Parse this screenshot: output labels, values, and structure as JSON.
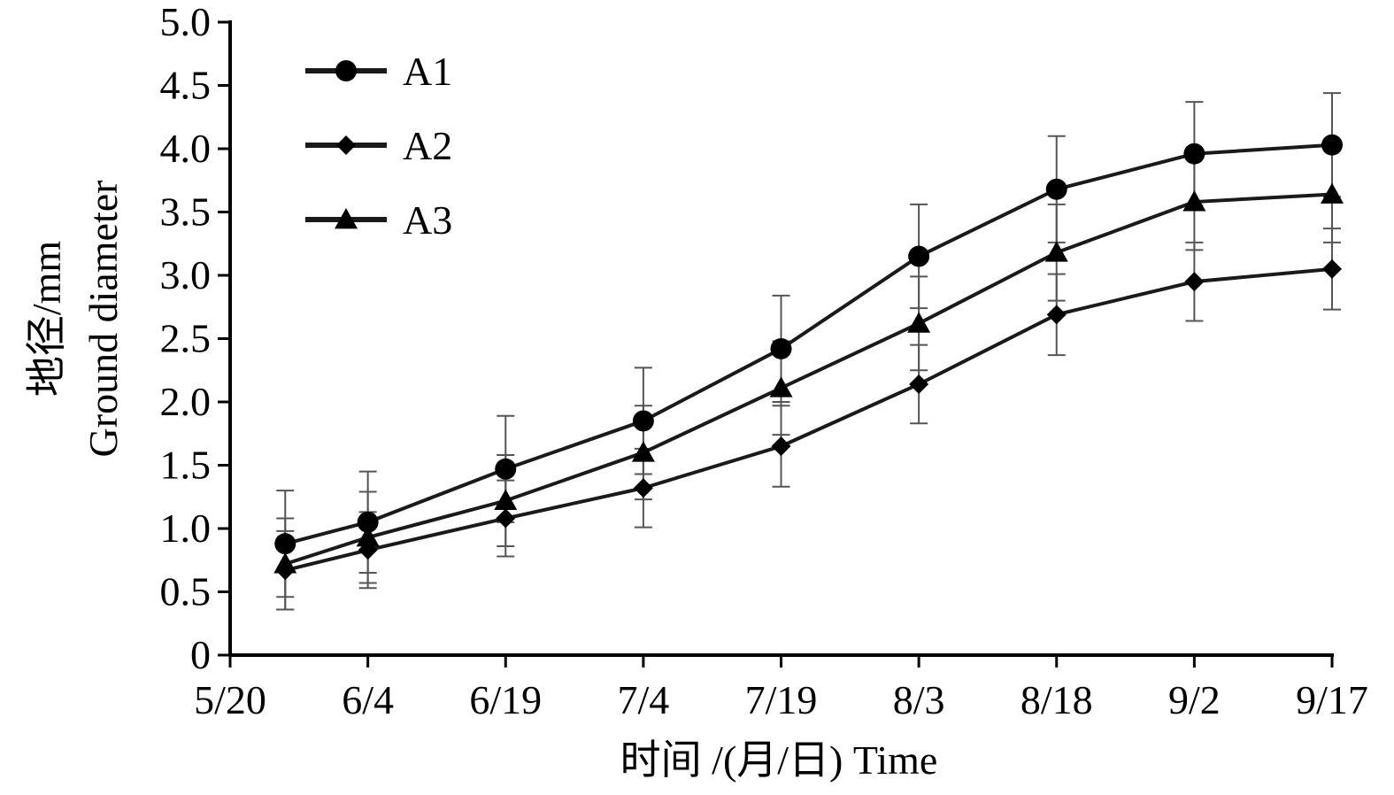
{
  "chart_data": {
    "type": "line",
    "title": "",
    "xlabel": "时间 /(月/日) Time",
    "ylabel_line1": "地径/mm",
    "ylabel_line2": "Ground diameter",
    "x_ticks": [
      "5/20",
      "6/4",
      "6/19",
      "7/4",
      "7/19",
      "8/3",
      "8/18",
      "9/2",
      "9/17"
    ],
    "x_range": [
      "5/20",
      "9/17"
    ],
    "y_ticks": [
      "0",
      "0.5",
      "1.0",
      "1.5",
      "2.0",
      "2.5",
      "3.0",
      "3.5",
      "4.0",
      "4.5",
      "5.0"
    ],
    "ylim": [
      0,
      5
    ],
    "grid": false,
    "legend_position": "top-left",
    "x": [
      "5/26",
      "6/4",
      "6/19",
      "7/4",
      "7/19",
      "8/3",
      "8/18",
      "9/2",
      "9/17"
    ],
    "series": [
      {
        "name": "A1",
        "marker": "circle",
        "values": [
          0.88,
          1.05,
          1.47,
          1.85,
          2.42,
          3.15,
          3.68,
          3.96,
          4.03
        ],
        "errors": [
          0.42,
          0.4,
          0.42,
          0.42,
          0.42,
          0.41,
          0.42,
          0.41,
          0.41
        ]
      },
      {
        "name": "A2",
        "marker": "diamond",
        "values": [
          0.67,
          0.83,
          1.08,
          1.32,
          1.65,
          2.14,
          2.69,
          2.95,
          3.05
        ],
        "errors": [
          0.31,
          0.3,
          0.3,
          0.31,
          0.32,
          0.31,
          0.32,
          0.31,
          0.32
        ]
      },
      {
        "name": "A3",
        "marker": "triangle",
        "values": [
          0.72,
          0.93,
          1.22,
          1.6,
          2.11,
          2.62,
          3.18,
          3.58,
          3.64
        ],
        "errors": [
          0.36,
          0.36,
          0.36,
          0.37,
          0.37,
          0.37,
          0.38,
          0.38,
          0.38
        ]
      }
    ],
    "colors": {
      "line": "#1a1a1a",
      "marker": "#000000",
      "error_bar": "#555555"
    }
  }
}
